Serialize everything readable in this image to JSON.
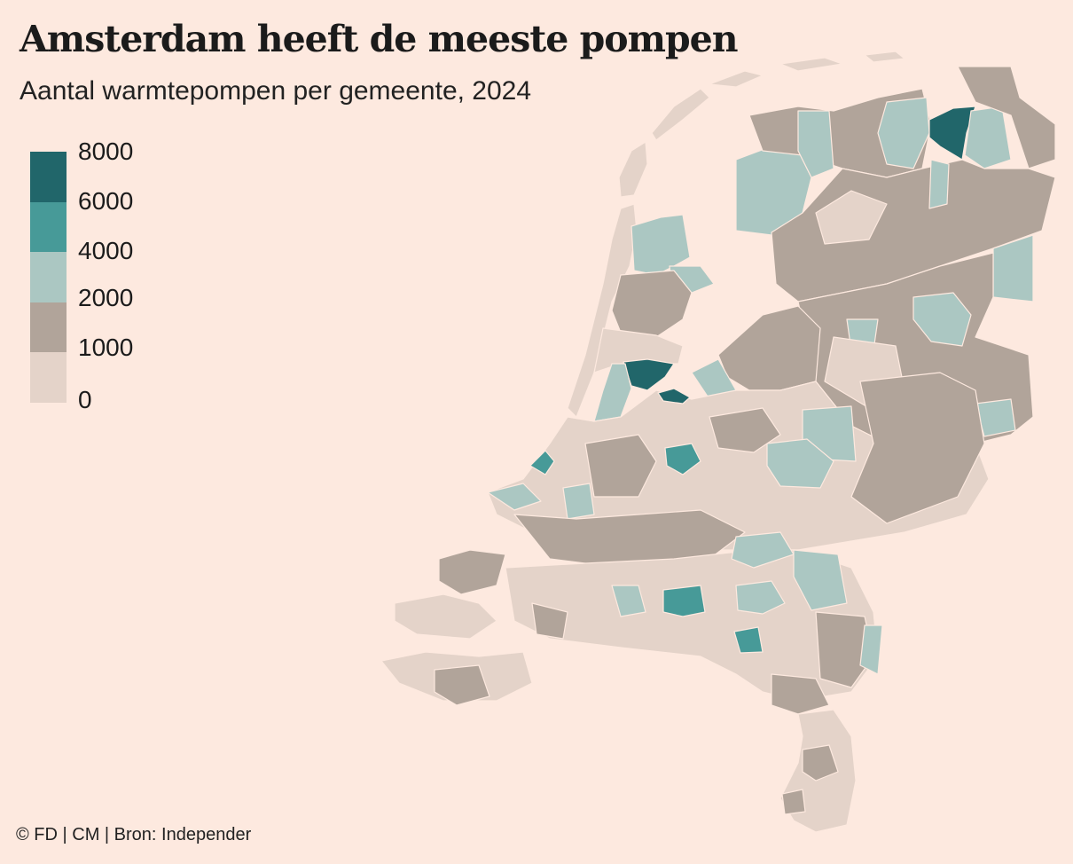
{
  "title": "Amsterdam heeft de meeste pompen",
  "subtitle": "Aantal warmtepompen per gemeente, 2024",
  "legend": {
    "labels": [
      "8000",
      "6000",
      "4000",
      "2000",
      "1000",
      "0"
    ],
    "colors": [
      "#21666a",
      "#479a98",
      "#abc7c2",
      "#b1a49a",
      "#e4d3c9"
    ]
  },
  "footer": "© FD | CM | Bron: Independer",
  "background": "#fde9df"
}
